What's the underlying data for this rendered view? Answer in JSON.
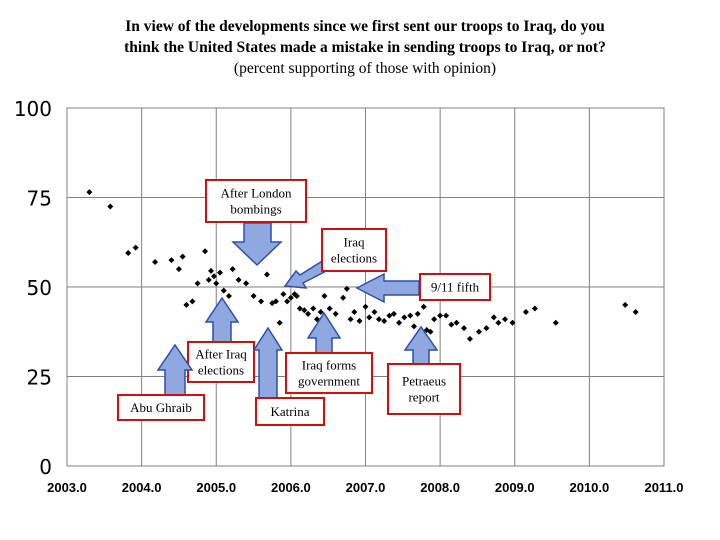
{
  "title": {
    "line1": "In view of the developments since we first sent our troops to Iraq, do you",
    "line2": "think the United States made a mistake in sending troops to Iraq, or not?",
    "line3": "(percent supporting of those with opinion)"
  },
  "chart_data": {
    "type": "scatter",
    "title": "In view of the developments since we first sent our troops to Iraq, do you think the United States made a mistake in sending troops to Iraq, or not? (percent supporting of those with opinion)",
    "xlim": [
      2003.0,
      2011.0
    ],
    "ylim": [
      0,
      100
    ],
    "x_ticks": [
      "2003.0",
      "2004.0",
      "2005.0",
      "2006.0",
      "2007.0",
      "2008.0",
      "2009.0",
      "2010.0",
      "2011.0"
    ],
    "y_ticks": [
      "0",
      "25",
      "50",
      "75",
      "100"
    ],
    "grid": true,
    "series": [
      {
        "marker": "diamond",
        "color": "#000000",
        "points": [
          [
            2003.3,
            76.5
          ],
          [
            2003.58,
            72.5
          ],
          [
            2003.82,
            59.5
          ],
          [
            2003.92,
            61.0
          ],
          [
            2004.18,
            57.0
          ],
          [
            2004.4,
            57.5
          ],
          [
            2004.5,
            55.0
          ],
          [
            2004.55,
            58.5
          ],
          [
            2004.6,
            45.0
          ],
          [
            2004.68,
            46.0
          ],
          [
            2004.75,
            51.0
          ],
          [
            2004.85,
            60.0
          ],
          [
            2004.9,
            52.0
          ],
          [
            2004.93,
            54.5
          ],
          [
            2004.97,
            53.0
          ],
          [
            2005.0,
            51.0
          ],
          [
            2005.05,
            54.0
          ],
          [
            2005.1,
            49.0
          ],
          [
            2005.17,
            47.5
          ],
          [
            2005.22,
            55.0
          ],
          [
            2005.3,
            52.0
          ],
          [
            2005.4,
            51.0
          ],
          [
            2005.5,
            47.5
          ],
          [
            2005.6,
            46.0
          ],
          [
            2005.68,
            53.5
          ],
          [
            2005.75,
            45.5
          ],
          [
            2005.8,
            46.0
          ],
          [
            2005.85,
            40.0
          ],
          [
            2005.9,
            48.0
          ],
          [
            2005.95,
            46.0
          ],
          [
            2006.0,
            47.0
          ],
          [
            2006.05,
            48.0
          ],
          [
            2006.08,
            47.5
          ],
          [
            2006.12,
            44.0
          ],
          [
            2006.18,
            43.5
          ],
          [
            2006.23,
            42.5
          ],
          [
            2006.3,
            44.0
          ],
          [
            2006.35,
            41.0
          ],
          [
            2006.4,
            43.0
          ],
          [
            2006.45,
            47.5
          ],
          [
            2006.52,
            44.0
          ],
          [
            2006.6,
            42.5
          ],
          [
            2006.7,
            47.0
          ],
          [
            2006.75,
            49.5
          ],
          [
            2006.8,
            41.0
          ],
          [
            2006.85,
            43.0
          ],
          [
            2006.92,
            40.5
          ],
          [
            2007.0,
            44.5
          ],
          [
            2007.05,
            41.5
          ],
          [
            2007.12,
            43.0
          ],
          [
            2007.18,
            41.0
          ],
          [
            2007.25,
            40.5
          ],
          [
            2007.32,
            42.0
          ],
          [
            2007.38,
            42.5
          ],
          [
            2007.45,
            40.0
          ],
          [
            2007.52,
            41.5
          ],
          [
            2007.6,
            42.0
          ],
          [
            2007.65,
            39.0
          ],
          [
            2007.7,
            42.5
          ],
          [
            2007.78,
            44.5
          ],
          [
            2007.82,
            38.0
          ],
          [
            2007.87,
            37.5
          ],
          [
            2007.92,
            41.0
          ],
          [
            2008.0,
            42.0
          ],
          [
            2008.08,
            42.0
          ],
          [
            2008.15,
            39.5
          ],
          [
            2008.22,
            40.0
          ],
          [
            2008.32,
            38.5
          ],
          [
            2008.4,
            35.5
          ],
          [
            2008.52,
            37.5
          ],
          [
            2008.62,
            38.5
          ],
          [
            2008.72,
            41.5
          ],
          [
            2008.78,
            40.0
          ],
          [
            2008.87,
            41.0
          ],
          [
            2008.97,
            40.0
          ],
          [
            2009.15,
            43.0
          ],
          [
            2009.27,
            44.0
          ],
          [
            2009.55,
            40.0
          ],
          [
            2010.48,
            45.0
          ],
          [
            2010.62,
            43.0
          ]
        ]
      }
    ],
    "annotations": [
      {
        "text": [
          "After London",
          "bombings"
        ],
        "arrow": "down"
      },
      {
        "text": [
          "Iraq",
          "elections"
        ],
        "arrow": "down-left"
      },
      {
        "text": [
          "9/11 fifth"
        ],
        "arrow": "left"
      },
      {
        "text": [
          "After Iraq",
          "elections"
        ],
        "arrow": "up"
      },
      {
        "text": [
          "Abu Ghraib"
        ],
        "arrow": "up"
      },
      {
        "text": [
          "Katrina"
        ],
        "arrow": "up"
      },
      {
        "text": [
          "Iraq forms",
          "government"
        ],
        "arrow": "up"
      },
      {
        "text": [
          "Petraeus",
          "report"
        ],
        "arrow": "up"
      }
    ]
  }
}
